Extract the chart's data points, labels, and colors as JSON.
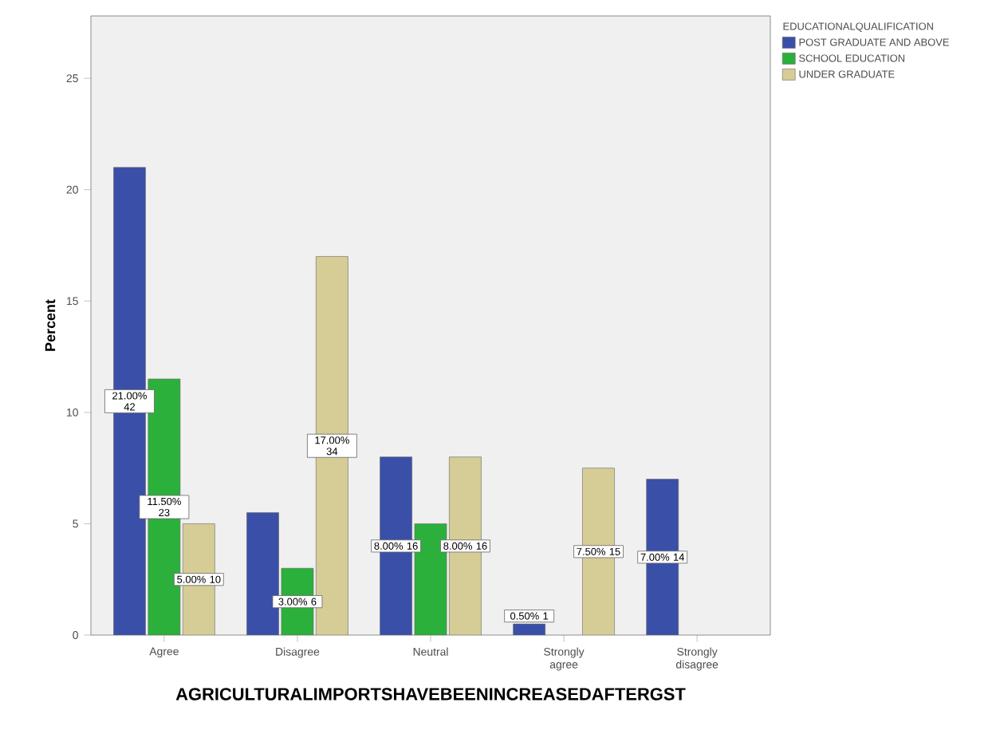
{
  "chart_data": {
    "type": "bar",
    "xlabel": "AGRICULTURALIMPORTSHAVEBEENINCREASEDAFTERGST",
    "ylabel": "Percent",
    "legend_title": "EDUCATIONALQUALIFICATION",
    "categories": [
      "Agree",
      "Disagree",
      "Neutral",
      "Strongly agree",
      "Strongly disagree"
    ],
    "series": [
      {
        "name": "POST GRADUATE AND ABOVE",
        "color": "#3a4fa8",
        "values": [
          21,
          5.5,
          8,
          0.5,
          7
        ],
        "value_labels": [
          "21.00% 42",
          null,
          "8.00% 16",
          "0.50% 1",
          "7.00% 14"
        ]
      },
      {
        "name": "SCHOOL EDUCATION",
        "color": "#2bb03c",
        "values": [
          11.5,
          3,
          5,
          null,
          null
        ],
        "value_labels": [
          "11.50% 23",
          "3.00% 6",
          null,
          null,
          null
        ]
      },
      {
        "name": "UNDER GRADUATE",
        "color": "#d6cc96",
        "values": [
          5,
          17,
          8,
          7.5,
          null
        ],
        "value_labels": [
          "5.00% 10",
          "17.00% 34",
          "8.00% 16",
          "7.50% 15",
          null
        ]
      }
    ],
    "ylim": [
      0,
      27.8
    ],
    "yticks": [
      0,
      5,
      10,
      15,
      20,
      25
    ],
    "grid": false,
    "legend": "top right"
  }
}
